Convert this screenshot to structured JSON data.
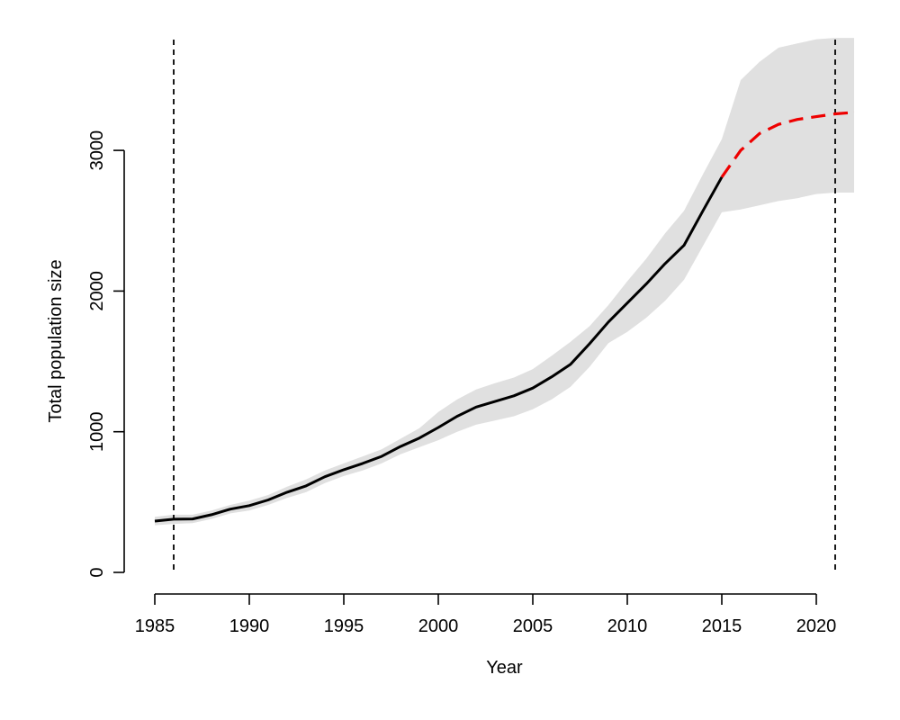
{
  "chart_data": {
    "type": "line",
    "title": "",
    "xlabel": "Year",
    "ylabel": "Total population size",
    "xlim": [
      1985,
      2022
    ],
    "ylim": [
      0,
      3800
    ],
    "x_ticks": [
      1985,
      1990,
      1995,
      2000,
      2005,
      2010,
      2015,
      2020
    ],
    "y_ticks": [
      0,
      1000,
      2000,
      3000
    ],
    "grid": false,
    "legend": "none",
    "series": [
      {
        "style": "solid",
        "color": "#000000",
        "x": [
          1985,
          1986,
          1987,
          1988,
          1989,
          1990,
          1991,
          1992,
          1993,
          1994,
          1995,
          1996,
          1997,
          1998,
          1999,
          2000,
          2001,
          2002,
          2003,
          2004,
          2005,
          2006,
          2007,
          2008,
          2009,
          2010,
          2011,
          2012,
          2013,
          2014,
          2015
        ],
        "values": [
          365,
          378,
          380,
          410,
          450,
          475,
          515,
          570,
          615,
          680,
          730,
          775,
          825,
          895,
          955,
          1030,
          1110,
          1175,
          1215,
          1255,
          1310,
          1390,
          1480,
          1625,
          1780,
          1915,
          2050,
          2195,
          2325,
          2570,
          2810
        ]
      },
      {
        "style": "dashed",
        "color": "#ee0000",
        "x": [
          2015,
          2016,
          2017,
          2018,
          2019,
          2020,
          2021,
          2022
        ],
        "values": [
          2810,
          3000,
          3120,
          3185,
          3220,
          3240,
          3260,
          3270
        ]
      }
    ],
    "confidence_band": {
      "color": "#e0e0e0",
      "x": [
        1985,
        1986,
        1987,
        1988,
        1989,
        1990,
        1991,
        1992,
        1993,
        1994,
        1995,
        1996,
        1997,
        1998,
        1999,
        2000,
        2001,
        2002,
        2003,
        2004,
        2005,
        2006,
        2007,
        2008,
        2009,
        2010,
        2011,
        2012,
        2013,
        2014,
        2015,
        2016,
        2017,
        2018,
        2019,
        2020,
        2021,
        2022
      ],
      "lower": [
        335,
        345,
        350,
        380,
        420,
        440,
        480,
        530,
        570,
        635,
        685,
        725,
        775,
        840,
        890,
        940,
        1000,
        1050,
        1080,
        1110,
        1160,
        1230,
        1320,
        1460,
        1630,
        1710,
        1810,
        1930,
        2080,
        2320,
        2560,
        2580,
        2610,
        2640,
        2660,
        2690,
        2700,
        2700
      ],
      "upper": [
        395,
        410,
        410,
        440,
        480,
        510,
        550,
        610,
        660,
        725,
        775,
        825,
        875,
        950,
        1025,
        1140,
        1230,
        1300,
        1345,
        1385,
        1445,
        1540,
        1640,
        1750,
        1900,
        2070,
        2230,
        2410,
        2570,
        2830,
        3080,
        3500,
        3630,
        3730,
        3760,
        3790,
        3800,
        3800
      ]
    },
    "reference_lines": [
      {
        "axis": "x",
        "value": 1986,
        "style": "dashed",
        "color": "#000000"
      },
      {
        "axis": "x",
        "value": 2021,
        "style": "dashed",
        "color": "#000000"
      }
    ]
  }
}
